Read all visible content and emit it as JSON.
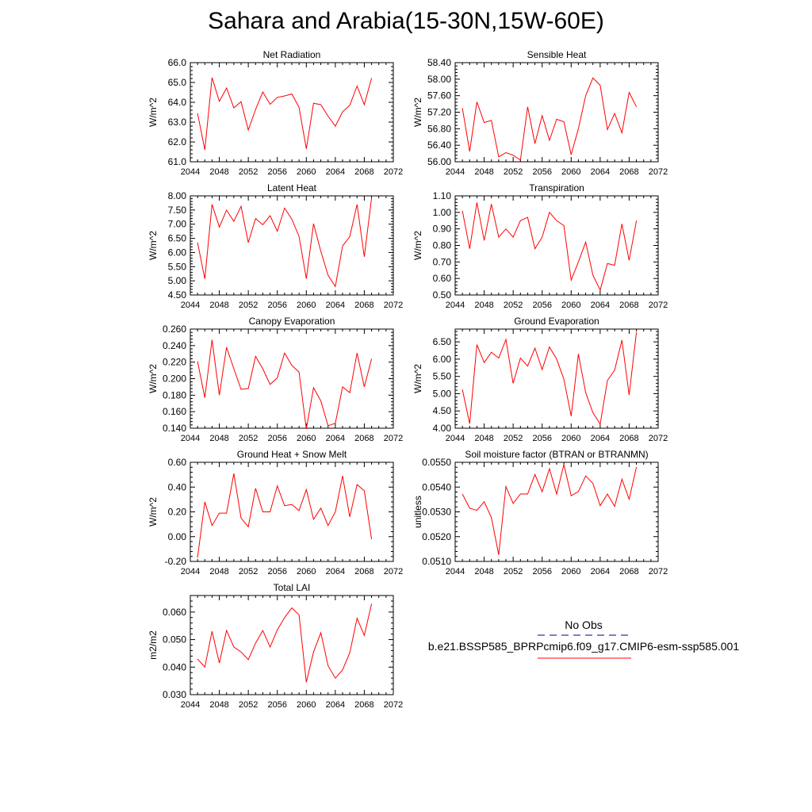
{
  "title": "Sahara and Arabia(15-30N,15W-60E)",
  "legend": {
    "obs_label": "No Obs",
    "case_label": "b.e21.BSSP585_BPRPcmip6.f09_g17.CMIP6-esm-ssp585.001",
    "obs_color": "#000080",
    "case_color": "#ff0000"
  },
  "chart_data": [
    {
      "type": "line",
      "title": "Net Radiation",
      "ylabel": "W/m^2",
      "xlim": [
        2044,
        2072
      ],
      "ylim": [
        61.0,
        66.0
      ],
      "xticks": [
        "2044",
        "2048",
        "2052",
        "2056",
        "2060",
        "2064",
        "2068",
        "2072"
      ],
      "yticks": [
        "61.0",
        "62.0",
        "63.0",
        "64.0",
        "65.0",
        "66.0"
      ],
      "x": [
        2045,
        2046,
        2047,
        2048,
        2049,
        2050,
        2051,
        2052,
        2053,
        2054,
        2055,
        2056,
        2057,
        2058,
        2059,
        2060,
        2061,
        2062,
        2063,
        2064,
        2065,
        2066,
        2067,
        2068,
        2069
      ],
      "series": [
        {
          "color": "#ff0000",
          "values": [
            63.45,
            61.6,
            65.25,
            64.05,
            64.72,
            63.72,
            64.03,
            62.6,
            63.64,
            64.52,
            63.9,
            64.25,
            64.32,
            64.42,
            63.75,
            61.65,
            63.95,
            63.88,
            63.3,
            62.8,
            63.52,
            63.85,
            64.82,
            63.88,
            65.22
          ]
        }
      ]
    },
    {
      "type": "line",
      "title": "Sensible Heat",
      "ylabel": "W/m^2",
      "xlim": [
        2044,
        2072
      ],
      "ylim": [
        56.0,
        58.4
      ],
      "xticks": [
        "2044",
        "2048",
        "2052",
        "2056",
        "2060",
        "2064",
        "2068",
        "2072"
      ],
      "yticks": [
        "56.00",
        "56.40",
        "56.80",
        "57.20",
        "57.60",
        "58.00",
        "58.40"
      ],
      "x": [
        2045,
        2046,
        2047,
        2048,
        2049,
        2050,
        2051,
        2052,
        2053,
        2054,
        2055,
        2056,
        2057,
        2058,
        2059,
        2060,
        2061,
        2062,
        2063,
        2064,
        2065,
        2066,
        2067,
        2068,
        2069
      ],
      "series": [
        {
          "color": "#ff0000",
          "values": [
            57.3,
            56.25,
            57.45,
            56.95,
            57.0,
            56.12,
            56.22,
            56.16,
            56.04,
            57.33,
            56.44,
            57.12,
            56.52,
            57.03,
            56.97,
            56.17,
            56.8,
            57.6,
            58.03,
            57.85,
            56.78,
            57.17,
            56.7,
            57.68,
            57.33
          ]
        }
      ]
    },
    {
      "type": "line",
      "title": "Latent Heat",
      "ylabel": "W/m^2",
      "xlim": [
        2044,
        2072
      ],
      "ylim": [
        4.5,
        8.0
      ],
      "xticks": [
        "2044",
        "2048",
        "2052",
        "2056",
        "2060",
        "2064",
        "2068",
        "2072"
      ],
      "yticks": [
        "4.50",
        "5.00",
        "5.50",
        "6.00",
        "6.50",
        "7.00",
        "7.50",
        "8.00"
      ],
      "x": [
        2045,
        2046,
        2047,
        2048,
        2049,
        2050,
        2051,
        2052,
        2053,
        2054,
        2055,
        2056,
        2057,
        2058,
        2059,
        2060,
        2061,
        2062,
        2063,
        2064,
        2065,
        2066,
        2067,
        2068,
        2069
      ],
      "series": [
        {
          "color": "#ff0000",
          "values": [
            6.35,
            5.07,
            7.7,
            6.9,
            7.5,
            7.1,
            7.63,
            6.35,
            7.2,
            6.98,
            7.3,
            6.75,
            7.57,
            7.18,
            6.57,
            5.07,
            7.02,
            6.04,
            5.2,
            4.8,
            6.23,
            6.56,
            7.7,
            5.85,
            7.93
          ]
        }
      ]
    },
    {
      "type": "line",
      "title": "Transpiration",
      "ylabel": "W/m^2",
      "xlim": [
        2044,
        2072
      ],
      "ylim": [
        0.5,
        1.1
      ],
      "xticks": [
        "2044",
        "2048",
        "2052",
        "2056",
        "2060",
        "2064",
        "2068",
        "2072"
      ],
      "yticks": [
        "0.50",
        "0.60",
        "0.70",
        "0.80",
        "0.90",
        "1.00",
        "1.10"
      ],
      "x": [
        2045,
        2046,
        2047,
        2048,
        2049,
        2050,
        2051,
        2052,
        2053,
        2054,
        2055,
        2056,
        2057,
        2058,
        2059,
        2060,
        2061,
        2062,
        2063,
        2064,
        2065,
        2066,
        2067,
        2068,
        2069
      ],
      "series": [
        {
          "color": "#ff0000",
          "values": [
            1.01,
            0.78,
            1.06,
            0.83,
            1.05,
            0.85,
            0.9,
            0.85,
            0.95,
            0.97,
            0.78,
            0.85,
            1.0,
            0.95,
            0.92,
            0.59,
            0.7,
            0.82,
            0.62,
            0.53,
            0.69,
            0.68,
            0.93,
            0.71,
            0.95
          ]
        }
      ]
    },
    {
      "type": "line",
      "title": "Canopy Evaporation",
      "ylabel": "W/m^2",
      "xlim": [
        2044,
        2072
      ],
      "ylim": [
        0.14,
        0.26
      ],
      "xticks": [
        "2044",
        "2048",
        "2052",
        "2056",
        "2060",
        "2064",
        "2068",
        "2072"
      ],
      "yticks": [
        "0.140",
        "0.160",
        "0.180",
        "0.200",
        "0.220",
        "0.240",
        "0.260"
      ],
      "x": [
        2045,
        2046,
        2047,
        2048,
        2049,
        2050,
        2051,
        2052,
        2053,
        2054,
        2055,
        2056,
        2057,
        2058,
        2059,
        2060,
        2061,
        2062,
        2063,
        2064,
        2065,
        2066,
        2067,
        2068,
        2069
      ],
      "series": [
        {
          "color": "#ff0000",
          "values": [
            0.221,
            0.177,
            0.247,
            0.18,
            0.238,
            0.212,
            0.187,
            0.188,
            0.227,
            0.212,
            0.193,
            0.201,
            0.231,
            0.216,
            0.208,
            0.139,
            0.189,
            0.173,
            0.143,
            0.146,
            0.19,
            0.183,
            0.231,
            0.19,
            0.224
          ]
        }
      ]
    },
    {
      "type": "line",
      "title": "Ground Evaporation",
      "ylabel": "W/m^2",
      "xlim": [
        2044,
        2072
      ],
      "ylim": [
        4.0,
        6.87
      ],
      "xticks": [
        "2044",
        "2048",
        "2052",
        "2056",
        "2060",
        "2064",
        "2068",
        "2072"
      ],
      "yticks": [
        "4.00",
        "4.50",
        "5.00",
        "5.50",
        "6.00",
        "6.50"
      ],
      "x": [
        2045,
        2046,
        2047,
        2048,
        2049,
        2050,
        2051,
        2052,
        2053,
        2054,
        2055,
        2056,
        2057,
        2058,
        2059,
        2060,
        2061,
        2062,
        2063,
        2064,
        2065,
        2066,
        2067,
        2068,
        2069
      ],
      "series": [
        {
          "color": "#ff0000",
          "values": [
            5.12,
            4.13,
            6.42,
            5.9,
            6.2,
            6.03,
            6.57,
            5.3,
            6.03,
            5.8,
            6.32,
            5.7,
            6.35,
            6.0,
            5.42,
            4.35,
            6.15,
            5.03,
            4.45,
            4.12,
            5.38,
            5.68,
            6.55,
            4.96,
            6.78
          ]
        }
      ]
    },
    {
      "type": "line",
      "title": "Ground Heat + Snow Melt",
      "ylabel": "W/m^2",
      "xlim": [
        2044,
        2072
      ],
      "ylim": [
        -0.2,
        0.6
      ],
      "xticks": [
        "2044",
        "2048",
        "2052",
        "2056",
        "2060",
        "2064",
        "2068",
        "2072"
      ],
      "yticks": [
        "-0.20",
        "0.00",
        "0.20",
        "0.40",
        "0.60"
      ],
      "x": [
        2045,
        2046,
        2047,
        2048,
        2049,
        2050,
        2051,
        2052,
        2053,
        2054,
        2055,
        2056,
        2057,
        2058,
        2059,
        2060,
        2061,
        2062,
        2063,
        2064,
        2065,
        2066,
        2067,
        2068,
        2069
      ],
      "series": [
        {
          "color": "#ff0000",
          "values": [
            -0.17,
            0.28,
            0.09,
            0.19,
            0.19,
            0.51,
            0.15,
            0.08,
            0.39,
            0.2,
            0.2,
            0.41,
            0.25,
            0.26,
            0.21,
            0.38,
            0.14,
            0.23,
            0.09,
            0.2,
            0.49,
            0.16,
            0.42,
            0.37,
            -0.02
          ]
        }
      ]
    },
    {
      "type": "line",
      "title": "Soil moisture factor (BTRAN or BTRANMN)",
      "ylabel": "unitless",
      "xlim": [
        2044,
        2072
      ],
      "ylim": [
        0.051,
        0.055
      ],
      "xticks": [
        "2044",
        "2048",
        "2052",
        "2056",
        "2060",
        "2064",
        "2068",
        "2072"
      ],
      "yticks": [
        "0.0510",
        "0.0520",
        "0.0530",
        "0.0540",
        "0.0550"
      ],
      "x": [
        2045,
        2046,
        2047,
        2048,
        2049,
        2050,
        2051,
        2052,
        2053,
        2054,
        2055,
        2056,
        2057,
        2058,
        2059,
        2060,
        2061,
        2062,
        2063,
        2064,
        2065,
        2066,
        2067,
        2068,
        2069
      ],
      "series": [
        {
          "color": "#ff0000",
          "values": [
            0.05372,
            0.05315,
            0.05306,
            0.05341,
            0.05277,
            0.05127,
            0.05402,
            0.05334,
            0.05372,
            0.05372,
            0.05451,
            0.05381,
            0.05474,
            0.05372,
            0.05491,
            0.05365,
            0.05382,
            0.05445,
            0.05415,
            0.05325,
            0.05372,
            0.05322,
            0.05432,
            0.05351,
            0.05481
          ]
        }
      ]
    },
    {
      "type": "line",
      "title": "Total LAI",
      "ylabel": "m2/m2",
      "xlim": [
        2044,
        2072
      ],
      "ylim": [
        0.03,
        0.066
      ],
      "xticks": [
        "2044",
        "2048",
        "2052",
        "2056",
        "2060",
        "2064",
        "2068",
        "2072"
      ],
      "yticks": [
        "0.030",
        "0.040",
        "0.050",
        "0.060"
      ],
      "x": [
        2045,
        2046,
        2047,
        2048,
        2049,
        2050,
        2051,
        2052,
        2053,
        2054,
        2055,
        2056,
        2057,
        2058,
        2059,
        2060,
        2061,
        2062,
        2063,
        2064,
        2065,
        2066,
        2067,
        2068,
        2069
      ],
      "series": [
        {
          "color": "#ff0000",
          "values": [
            0.043,
            0.04,
            0.053,
            0.0415,
            0.0533,
            0.0473,
            0.0455,
            0.0427,
            0.0487,
            0.0533,
            0.0473,
            0.0535,
            0.058,
            0.0615,
            0.059,
            0.0345,
            0.0455,
            0.0525,
            0.0405,
            0.036,
            0.039,
            0.0452,
            0.0577,
            0.0515,
            0.063
          ]
        }
      ]
    }
  ]
}
